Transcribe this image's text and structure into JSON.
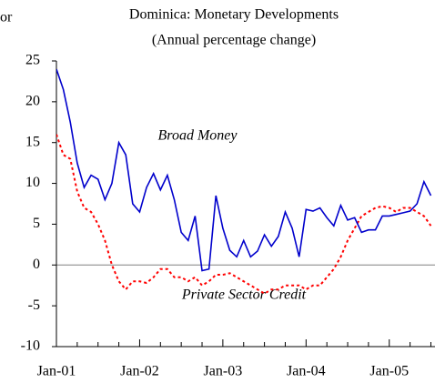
{
  "chart_data": {
    "type": "line",
    "title": "Dominica: Monetary Developments",
    "subtitle": "(Annual percentage change)",
    "annotations": [
      "or"
    ],
    "categories": [
      "Jan-01",
      null,
      null,
      null,
      null,
      null,
      null,
      null,
      null,
      null,
      null,
      null,
      "Jan-02",
      null,
      null,
      null,
      null,
      null,
      null,
      null,
      null,
      null,
      null,
      null,
      "Jan-03",
      null,
      null,
      null,
      null,
      null,
      null,
      null,
      null,
      null,
      null,
      null,
      "Jan-04",
      null,
      null,
      null,
      null,
      null,
      null,
      null,
      null,
      null,
      null,
      null,
      "Jan-05",
      null,
      null,
      null,
      null,
      null,
      null
    ],
    "series": [
      {
        "name": "Broad Money",
        "color": "#0000cc",
        "style": "solid",
        "values": [
          24,
          21.5,
          17.5,
          12.5,
          9.5,
          11,
          10.5,
          8,
          10,
          15,
          13.5,
          7.5,
          6.5,
          9.5,
          11.2,
          9.2,
          11,
          8,
          4,
          3,
          6,
          -0.7,
          -0.5,
          8.5,
          4.5,
          1.8,
          1,
          3,
          1,
          1.7,
          3.7,
          2.3,
          3.5,
          6.5,
          4.5,
          1,
          6.8,
          6.6,
          7,
          5.8,
          4.8,
          7.3,
          5.5,
          5.8,
          4,
          4.3,
          4.3,
          6,
          6,
          6.2,
          6.4,
          6.6,
          7.5,
          10.2,
          8.5
        ]
      },
      {
        "name": "Private Sector Credit",
        "color": "#ff0000",
        "style": "dotted",
        "values": [
          16,
          13.5,
          13,
          9,
          7,
          6.5,
          5,
          3,
          0,
          -2,
          -3,
          -2,
          -2,
          -2.2,
          -1.5,
          -0.5,
          -0.5,
          -1.5,
          -1.5,
          -2,
          -1.5,
          -2.5,
          -2,
          -1.2,
          -1.2,
          -1,
          -1.5,
          -2,
          -2.5,
          -3,
          -3.5,
          -3,
          -3,
          -2.5,
          -2.5,
          -2.5,
          -3,
          -2.5,
          -2.5,
          -1.5,
          -0.5,
          1,
          3,
          4.5,
          6,
          6.5,
          7,
          7.2,
          7,
          6.5,
          7,
          7,
          6.5,
          6,
          4.8
        ]
      }
    ],
    "ylim": [
      -10,
      25
    ],
    "yticks": [
      -10,
      -5,
      0,
      5,
      10,
      15,
      20,
      25
    ]
  }
}
